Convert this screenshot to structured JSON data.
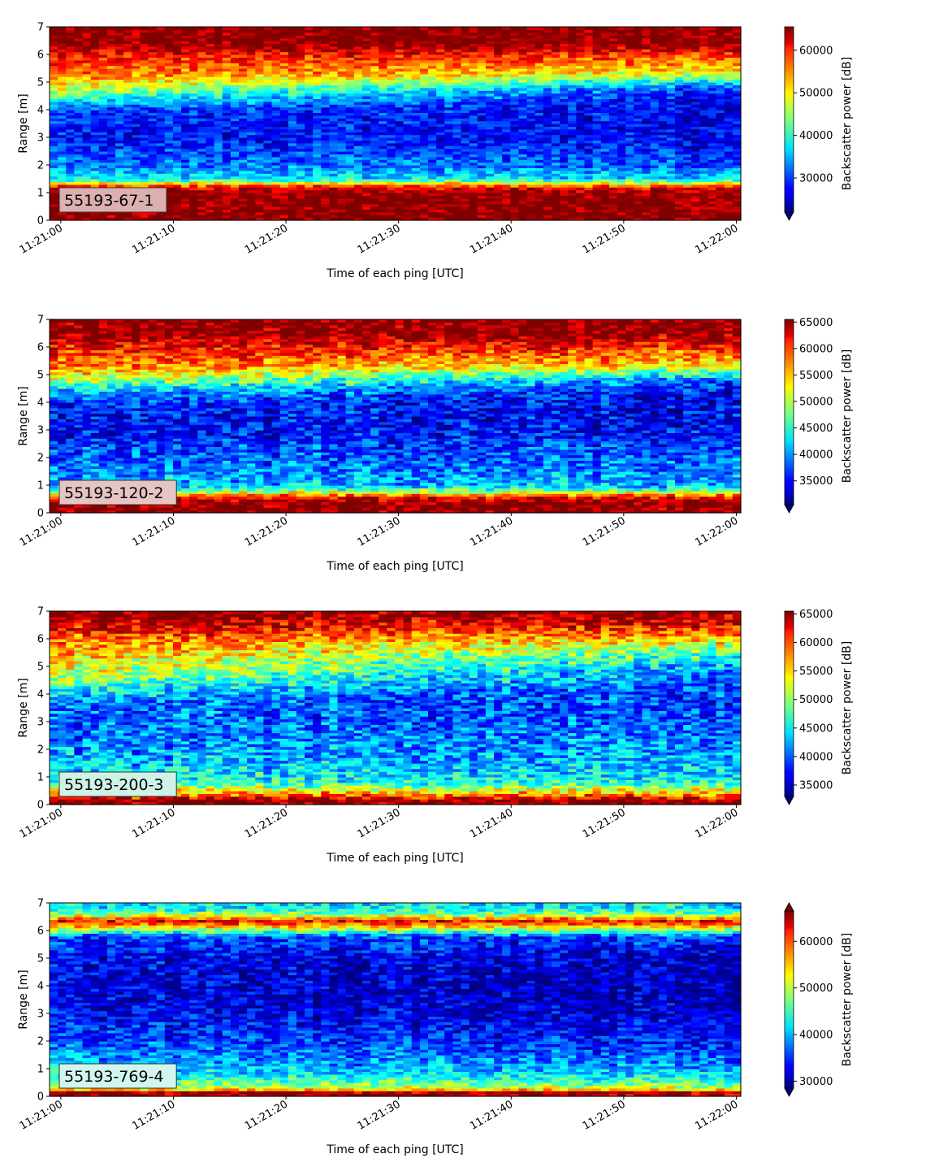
{
  "chart_data": [
    {
      "type": "heatmap",
      "label": "55193-67-1",
      "label_box_color": "#dcb0b0",
      "xlabel": "Time of each ping [UTC]",
      "ylabel": "Range [m]",
      "colorbar_label": "Backscatter power [dB]",
      "colormap": "jet",
      "colorbar_extend": "min",
      "xlim": [
        "11:21:00",
        "11:22:00"
      ],
      "ylim": [
        0,
        7
      ],
      "x_ticks": [
        "11:21:00",
        "11:21:10",
        "11:21:20",
        "11:21:30",
        "11:21:40",
        "11:21:50",
        "11:22:00"
      ],
      "y_ticks": [
        "0",
        "1",
        "2",
        "3",
        "4",
        "5",
        "6",
        "7"
      ],
      "colorbar_range": [
        22000,
        65500
      ],
      "colorbar_ticks": [
        "30000",
        "40000",
        "50000",
        "60000"
      ],
      "colorbar_tick_values": [
        30000,
        40000,
        50000,
        60000
      ],
      "profile_range_m": [
        0,
        0.2,
        0.3,
        1.0,
        1.2,
        1.35,
        1.5,
        2.0,
        3.0,
        4.0,
        4.3,
        4.8,
        5.3,
        6.0,
        6.4,
        7.0
      ],
      "profile_start": [
        65500,
        65500,
        65500,
        65500,
        60000,
        50000,
        38000,
        33000,
        28000,
        30000,
        37000,
        48000,
        56000,
        60000,
        65500,
        65500
      ],
      "profile_end": [
        65500,
        65500,
        65500,
        65500,
        60000,
        48000,
        37000,
        31000,
        27000,
        27000,
        26000,
        30000,
        48000,
        58000,
        65500,
        65500
      ]
    },
    {
      "type": "heatmap",
      "label": "55193-120-2",
      "label_box_color": "#e6c4c4",
      "xlabel": "Time of each ping [UTC]",
      "ylabel": "Range [m]",
      "colorbar_label": "Backscatter power [dB]",
      "colormap": "jet",
      "colorbar_extend": "min",
      "xlim": [
        "11:21:00",
        "11:22:00"
      ],
      "ylim": [
        0,
        7
      ],
      "x_ticks": [
        "11:21:00",
        "11:21:10",
        "11:21:20",
        "11:21:30",
        "11:21:40",
        "11:21:50",
        "11:22:00"
      ],
      "y_ticks": [
        "0",
        "1",
        "2",
        "3",
        "4",
        "5",
        "6",
        "7"
      ],
      "colorbar_range": [
        30500,
        65500
      ],
      "colorbar_ticks": [
        "35000",
        "40000",
        "45000",
        "50000",
        "55000",
        "60000",
        "65000"
      ],
      "colorbar_tick_values": [
        35000,
        40000,
        45000,
        50000,
        55000,
        60000,
        65000
      ],
      "profile_range_m": [
        0,
        0.1,
        0.4,
        0.6,
        0.8,
        1.0,
        2.0,
        3.0,
        3.9,
        4.3,
        4.8,
        5.3,
        6.0,
        6.5,
        7.0
      ],
      "profile_start": [
        65500,
        65500,
        65500,
        60000,
        48000,
        41000,
        38000,
        35000,
        36000,
        40000,
        50000,
        57000,
        61000,
        65500,
        65500
      ],
      "profile_end": [
        65500,
        65500,
        65500,
        60000,
        48000,
        41000,
        38000,
        35000,
        34000,
        34000,
        38000,
        52000,
        60000,
        65500,
        65500
      ]
    },
    {
      "type": "heatmap",
      "label": "55193-200-3",
      "label_box_color": "#cff2e6",
      "xlabel": "Time of each ping [UTC]",
      "ylabel": "Range [m]",
      "colorbar_label": "Backscatter power [dB]",
      "colormap": "jet",
      "colorbar_extend": "min",
      "xlim": [
        "11:21:00",
        "11:22:00"
      ],
      "ylim": [
        0,
        7
      ],
      "x_ticks": [
        "11:21:00",
        "11:21:10",
        "11:21:20",
        "11:21:30",
        "11:21:40",
        "11:21:50",
        "11:22:00"
      ],
      "y_ticks": [
        "0",
        "1",
        "2",
        "3",
        "4",
        "5",
        "6",
        "7"
      ],
      "colorbar_range": [
        33000,
        65500
      ],
      "colorbar_ticks": [
        "35000",
        "40000",
        "45000",
        "50000",
        "55000",
        "60000",
        "65000"
      ],
      "colorbar_tick_values": [
        35000,
        40000,
        45000,
        50000,
        55000,
        60000,
        65000
      ],
      "profile_range_m": [
        0,
        0.15,
        0.3,
        0.5,
        0.7,
        1.0,
        2.0,
        3.0,
        3.8,
        4.2,
        4.8,
        5.4,
        6.0,
        6.5,
        7.0
      ],
      "profile_start": [
        65500,
        65500,
        60000,
        54000,
        48000,
        45000,
        42000,
        40000,
        41000,
        46000,
        52000,
        55000,
        58000,
        63000,
        65500
      ],
      "profile_end": [
        65500,
        65500,
        60000,
        54000,
        48000,
        44000,
        42000,
        40000,
        39000,
        39000,
        41000,
        46000,
        55000,
        61000,
        65500
      ]
    },
    {
      "type": "heatmap",
      "label": "55193-769-4",
      "label_box_color": "#d2f5ef",
      "xlabel": "Time of each ping [UTC]",
      "ylabel": "Range [m]",
      "colorbar_label": "Backscatter power [dB]",
      "colormap": "jet",
      "colorbar_extend": "both",
      "xlim": [
        "11:21:00",
        "11:22:00"
      ],
      "ylim": [
        0,
        7
      ],
      "x_ticks": [
        "11:21:00",
        "11:21:10",
        "11:21:20",
        "11:21:30",
        "11:21:40",
        "11:21:50",
        "11:22:00"
      ],
      "y_ticks": [
        "0",
        "1",
        "2",
        "3",
        "4",
        "5",
        "6",
        "7"
      ],
      "colorbar_range": [
        28500,
        66500
      ],
      "colorbar_ticks": [
        "30000",
        "40000",
        "50000",
        "60000"
      ],
      "colorbar_tick_values": [
        30000,
        40000,
        50000,
        60000
      ],
      "profile_range_m": [
        0,
        0.15,
        0.25,
        0.4,
        0.8,
        1.2,
        2.0,
        3.0,
        4.0,
        5.0,
        5.8,
        6.1,
        6.35,
        6.6,
        6.8,
        7.0
      ],
      "profile_start": [
        65500,
        65500,
        54000,
        48000,
        42000,
        40000,
        36000,
        33000,
        32000,
        33000,
        36000,
        52000,
        62000,
        48000,
        42000,
        42000
      ],
      "profile_end": [
        65500,
        65500,
        54000,
        48000,
        42000,
        38000,
        34000,
        31000,
        30000,
        31000,
        36000,
        52000,
        62000,
        48000,
        42000,
        42000
      ]
    }
  ]
}
